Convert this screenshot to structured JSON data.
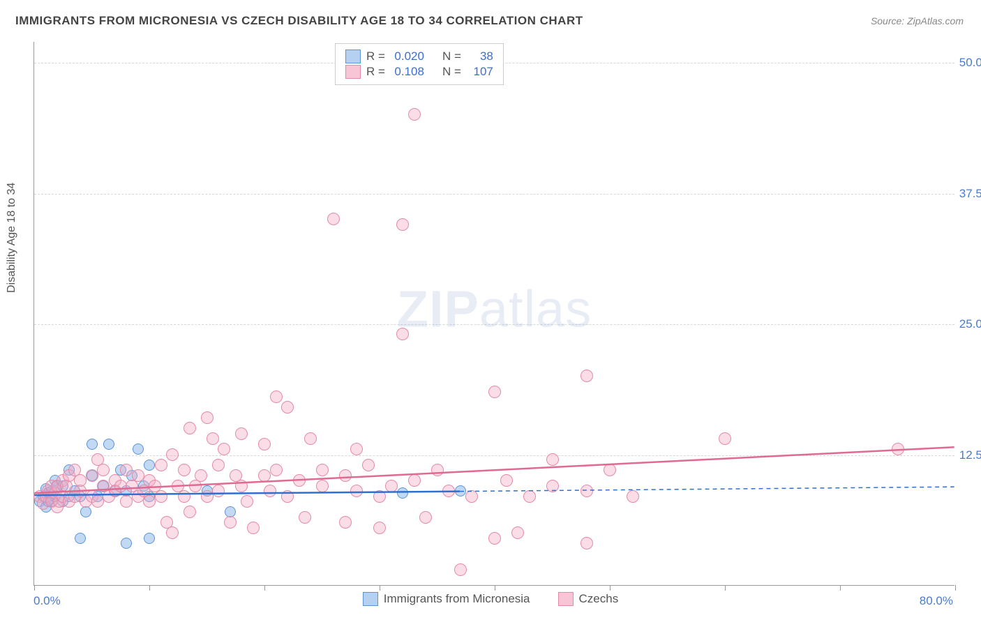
{
  "title": "IMMIGRANTS FROM MICRONESIA VS CZECH DISABILITY AGE 18 TO 34 CORRELATION CHART",
  "source": "Source: ZipAtlas.com",
  "y_axis_title": "Disability Age 18 to 34",
  "x_min_label": "0.0%",
  "x_max_label": "80.0%",
  "watermark": {
    "bold": "ZIP",
    "light": "atlas"
  },
  "chart": {
    "type": "scatter",
    "xlim": [
      0,
      80
    ],
    "ylim": [
      0,
      52
    ],
    "x_tick_step": 10,
    "y_ticks": [
      12.5,
      25.0,
      37.5,
      50.0
    ],
    "y_tick_labels": [
      "12.5%",
      "25.0%",
      "37.5%",
      "50.0%"
    ],
    "background_color": "#ffffff",
    "grid_color": "#d8d8d8",
    "marker_radius_blue": 8,
    "marker_radius_pink": 9,
    "blue_fill": "rgba(120,170,230,0.45)",
    "blue_stroke": "#5c94d6",
    "pink_fill": "rgba(245,170,195,0.40)",
    "pink_stroke": "#e38aa8",
    "trend_blue_color": "#2f6fd0",
    "trend_pink_color": "#e06a90",
    "trend_width": 2.5,
    "series": [
      {
        "id": "micronesia",
        "label": "Immigrants from Micronesia",
        "color_key": "blue",
        "R": "0.020",
        "N": "38",
        "trend": {
          "y_at_x0": 8.6,
          "y_at_xmax": 9.4,
          "solid_to_x": 37
        },
        "points": [
          [
            0.5,
            8.0
          ],
          [
            0.8,
            8.5
          ],
          [
            1.0,
            9.2
          ],
          [
            1.0,
            7.5
          ],
          [
            1.2,
            8.0
          ],
          [
            1.2,
            8.8
          ],
          [
            1.5,
            9.0
          ],
          [
            1.5,
            8.0
          ],
          [
            1.8,
            10.0
          ],
          [
            1.8,
            8.5
          ],
          [
            2.0,
            9.5
          ],
          [
            2.5,
            8.0
          ],
          [
            2.5,
            9.5
          ],
          [
            3.0,
            11.0
          ],
          [
            3.0,
            8.5
          ],
          [
            3.5,
            9.0
          ],
          [
            4.0,
            4.5
          ],
          [
            4.0,
            8.5
          ],
          [
            4.5,
            7.0
          ],
          [
            5.0,
            13.5
          ],
          [
            5.0,
            10.5
          ],
          [
            5.5,
            8.5
          ],
          [
            6.0,
            9.5
          ],
          [
            6.5,
            13.5
          ],
          [
            7.0,
            9.0
          ],
          [
            7.5,
            11.0
          ],
          [
            8.0,
            4.0
          ],
          [
            8.0,
            9.0
          ],
          [
            8.5,
            10.5
          ],
          [
            9.0,
            13.0
          ],
          [
            9.5,
            9.5
          ],
          [
            10.0,
            8.5
          ],
          [
            10.0,
            4.5
          ],
          [
            10.0,
            11.5
          ],
          [
            15.0,
            9.0
          ],
          [
            17.0,
            7.0
          ],
          [
            32.0,
            8.8
          ],
          [
            37.0,
            9.0
          ]
        ]
      },
      {
        "id": "czechs",
        "label": "Czechs",
        "color_key": "pink",
        "R": "0.108",
        "N": "107",
        "trend": {
          "y_at_x0": 8.8,
          "y_at_xmax": 13.2,
          "solid_to_x": 80
        },
        "points": [
          [
            0.5,
            8.5
          ],
          [
            0.8,
            7.8
          ],
          [
            1.0,
            8.5
          ],
          [
            1.2,
            9.0
          ],
          [
            1.5,
            8.0
          ],
          [
            1.5,
            9.5
          ],
          [
            1.8,
            8.8
          ],
          [
            2.0,
            7.5
          ],
          [
            2.0,
            9.5
          ],
          [
            2.2,
            8.0
          ],
          [
            2.5,
            10.0
          ],
          [
            2.5,
            8.5
          ],
          [
            2.8,
            9.5
          ],
          [
            3.0,
            8.0
          ],
          [
            3.0,
            10.5
          ],
          [
            3.5,
            8.5
          ],
          [
            3.5,
            11.0
          ],
          [
            4.0,
            9.0
          ],
          [
            4.0,
            10.0
          ],
          [
            4.5,
            8.0
          ],
          [
            5.0,
            10.5
          ],
          [
            5.0,
            8.5
          ],
          [
            5.5,
            12.0
          ],
          [
            5.5,
            8.0
          ],
          [
            6.0,
            9.5
          ],
          [
            6.0,
            11.0
          ],
          [
            6.5,
            8.5
          ],
          [
            7.0,
            10.0
          ],
          [
            7.0,
            9.0
          ],
          [
            7.5,
            9.5
          ],
          [
            8.0,
            8.0
          ],
          [
            8.0,
            11.0
          ],
          [
            8.5,
            9.5
          ],
          [
            9.0,
            8.5
          ],
          [
            9.0,
            10.5
          ],
          [
            9.5,
            9.0
          ],
          [
            10.0,
            8.0
          ],
          [
            10.0,
            10.0
          ],
          [
            10.5,
            9.5
          ],
          [
            11.0,
            8.5
          ],
          [
            11.0,
            11.5
          ],
          [
            11.5,
            6.0
          ],
          [
            12.0,
            5.0
          ],
          [
            12.0,
            12.5
          ],
          [
            12.5,
            9.5
          ],
          [
            13.0,
            8.5
          ],
          [
            13.0,
            11.0
          ],
          [
            13.5,
            15.0
          ],
          [
            13.5,
            7.0
          ],
          [
            14.0,
            9.5
          ],
          [
            14.5,
            10.5
          ],
          [
            15.0,
            16.0
          ],
          [
            15.0,
            8.5
          ],
          [
            15.5,
            14.0
          ],
          [
            16.0,
            9.0
          ],
          [
            16.0,
            11.5
          ],
          [
            16.5,
            13.0
          ],
          [
            17.0,
            6.0
          ],
          [
            17.5,
            10.5
          ],
          [
            18.0,
            9.5
          ],
          [
            18.0,
            14.5
          ],
          [
            18.5,
            8.0
          ],
          [
            19.0,
            5.5
          ],
          [
            20.0,
            10.5
          ],
          [
            20.0,
            13.5
          ],
          [
            20.5,
            9.0
          ],
          [
            21.0,
            11.0
          ],
          [
            21.0,
            18.0
          ],
          [
            22.0,
            17.0
          ],
          [
            22.0,
            8.5
          ],
          [
            23.0,
            10.0
          ],
          [
            23.5,
            6.5
          ],
          [
            24.0,
            14.0
          ],
          [
            25.0,
            9.5
          ],
          [
            25.0,
            11.0
          ],
          [
            26.0,
            35.0
          ],
          [
            27.0,
            10.5
          ],
          [
            27.0,
            6.0
          ],
          [
            28.0,
            9.0
          ],
          [
            28.0,
            13.0
          ],
          [
            29.0,
            11.5
          ],
          [
            30.0,
            5.5
          ],
          [
            30.0,
            8.5
          ],
          [
            31.0,
            9.5
          ],
          [
            32.0,
            34.5
          ],
          [
            32.0,
            24.0
          ],
          [
            33.0,
            10.0
          ],
          [
            33.0,
            45.0
          ],
          [
            34.0,
            6.5
          ],
          [
            35.0,
            11.0
          ],
          [
            36.0,
            9.0
          ],
          [
            37.0,
            1.5
          ],
          [
            38.0,
            8.5
          ],
          [
            40.0,
            4.5
          ],
          [
            40.0,
            18.5
          ],
          [
            41.0,
            10.0
          ],
          [
            42.0,
            5.0
          ],
          [
            43.0,
            8.5
          ],
          [
            45.0,
            12.0
          ],
          [
            45.0,
            9.5
          ],
          [
            48.0,
            4.0
          ],
          [
            48.0,
            20.0
          ],
          [
            48.0,
            9.0
          ],
          [
            50.0,
            11.0
          ],
          [
            52.0,
            8.5
          ],
          [
            60.0,
            14.0
          ],
          [
            75.0,
            13.0
          ]
        ]
      }
    ]
  },
  "stats_legend": {
    "rows": [
      {
        "swatch": "blue",
        "r_label": "R =",
        "r_val": "0.020",
        "n_label": "N =",
        "n_val": "38"
      },
      {
        "swatch": "pink",
        "r_label": "R =",
        "r_val": "0.108",
        "n_label": "N =",
        "n_val": "107"
      }
    ]
  },
  "bottom_legend": [
    {
      "swatch": "blue",
      "label": "Immigrants from Micronesia"
    },
    {
      "swatch": "pink",
      "label": "Czechs"
    }
  ]
}
